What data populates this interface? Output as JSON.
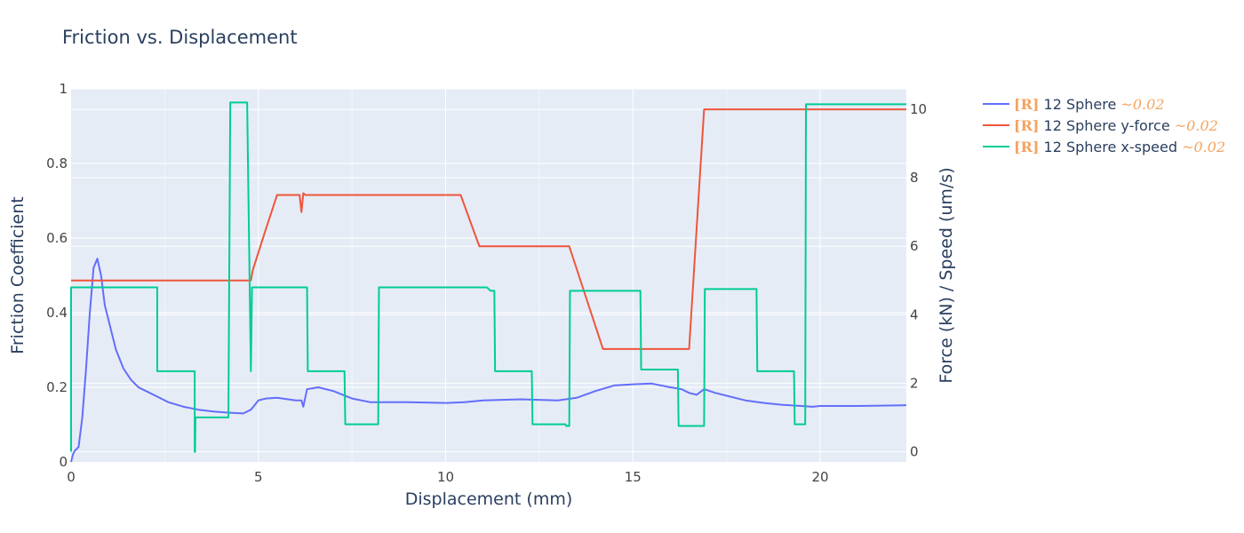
{
  "chart_data": {
    "type": "line",
    "title": "Friction vs. Displacement",
    "xlabel": "Displacement (mm)",
    "ylabel": "Friction Coefficient",
    "y2label": "Force (kN) / Speed (um/s)",
    "xlim": [
      0,
      22.3
    ],
    "ylim": [
      0,
      1
    ],
    "y2lim": [
      -0.3,
      10.6
    ],
    "xticks": [
      "0",
      "5",
      "10",
      "15",
      "20"
    ],
    "xtick_values": [
      0,
      5,
      10,
      15,
      20
    ],
    "yticks": [
      "0",
      "0.2",
      "0.4",
      "0.6",
      "0.8",
      "1"
    ],
    "ytick_values": [
      0,
      0.2,
      0.4,
      0.6,
      0.8,
      1
    ],
    "y2ticks": [
      "0",
      "2",
      "4",
      "6",
      "8",
      "10"
    ],
    "y2tick_values": [
      0,
      2,
      4,
      6,
      8,
      10
    ],
    "grid": true,
    "legend_position": "top-right-outside",
    "series": [
      {
        "name": "12 Sphere",
        "tag": "[R]",
        "approx": "~0.02",
        "axis": "y",
        "color": "#636efa",
        "x": [
          0,
          0.05,
          0.1,
          0.2,
          0.3,
          0.4,
          0.5,
          0.6,
          0.7,
          0.8,
          0.9,
          1.0,
          1.2,
          1.4,
          1.6,
          1.8,
          2.0,
          2.3,
          2.6,
          3.0,
          3.4,
          3.8,
          4.2,
          4.6,
          4.8,
          4.9,
          5.0,
          5.2,
          5.5,
          6.0,
          6.15,
          6.2,
          6.3,
          6.6,
          7.0,
          7.5,
          8.0,
          9.0,
          10.0,
          10.5,
          11.0,
          12.0,
          13.0,
          13.5,
          14.0,
          14.5,
          15.0,
          15.5,
          16.0,
          16.3,
          16.5,
          16.7,
          16.9,
          17.2,
          17.6,
          18.0,
          18.5,
          19.0,
          19.5,
          19.8,
          20.0,
          21.0,
          22.3
        ],
        "y": [
          0.0,
          0.02,
          0.03,
          0.04,
          0.12,
          0.25,
          0.4,
          0.52,
          0.545,
          0.5,
          0.42,
          0.38,
          0.3,
          0.25,
          0.22,
          0.2,
          0.19,
          0.175,
          0.16,
          0.148,
          0.14,
          0.135,
          0.132,
          0.13,
          0.14,
          0.152,
          0.165,
          0.17,
          0.172,
          0.165,
          0.165,
          0.148,
          0.195,
          0.2,
          0.19,
          0.17,
          0.16,
          0.16,
          0.158,
          0.16,
          0.165,
          0.168,
          0.165,
          0.172,
          0.19,
          0.205,
          0.208,
          0.21,
          0.2,
          0.195,
          0.185,
          0.18,
          0.195,
          0.185,
          0.175,
          0.165,
          0.158,
          0.153,
          0.15,
          0.148,
          0.15,
          0.15,
          0.152
        ]
      },
      {
        "name": "12 Sphere y-force",
        "tag": "[R]",
        "approx": "~0.02",
        "axis": "y2",
        "color": "#ef553b",
        "x": [
          0,
          4.8,
          4.85,
          5.2,
          5.5,
          6.1,
          6.15,
          6.2,
          6.25,
          10.0,
          10.4,
          10.9,
          13.3,
          14.2,
          16.5,
          16.9,
          22.3
        ],
        "y": [
          5.0,
          5.0,
          5.3,
          6.5,
          7.5,
          7.5,
          7.0,
          7.55,
          7.5,
          7.5,
          7.5,
          6.0,
          6.0,
          3.0,
          3.0,
          10.0,
          10.0
        ]
      },
      {
        "name": "12 Sphere x-speed",
        "tag": "[R]",
        "approx": "~0.02",
        "axis": "y2",
        "color": "#00cc96",
        "x": [
          0,
          0.0,
          2.3,
          2.3,
          3.3,
          3.3,
          3.31,
          3.32,
          4.2,
          4.25,
          4.7,
          4.8,
          4.83,
          4.85,
          6.3,
          6.32,
          7.3,
          7.32,
          8.2,
          8.22,
          11.1,
          11.2,
          11.3,
          11.32,
          12.3,
          12.32,
          13.2,
          13.22,
          13.3,
          13.32,
          15.2,
          15.22,
          16.2,
          16.22,
          16.9,
          16.92,
          18.3,
          18.32,
          19.3,
          19.32,
          19.6,
          19.62,
          22.3
        ],
        "y": [
          0.0,
          4.8,
          4.8,
          2.35,
          2.35,
          0.0,
          0.0,
          1.0,
          1.0,
          10.2,
          10.2,
          2.35,
          4.8,
          4.8,
          4.8,
          2.35,
          2.35,
          0.8,
          0.8,
          4.8,
          4.8,
          4.7,
          4.7,
          2.35,
          2.35,
          0.8,
          0.8,
          0.75,
          0.75,
          4.7,
          4.7,
          2.4,
          2.4,
          0.75,
          0.75,
          4.75,
          4.75,
          2.35,
          2.35,
          0.8,
          0.8,
          10.15,
          10.15
        ]
      }
    ]
  }
}
